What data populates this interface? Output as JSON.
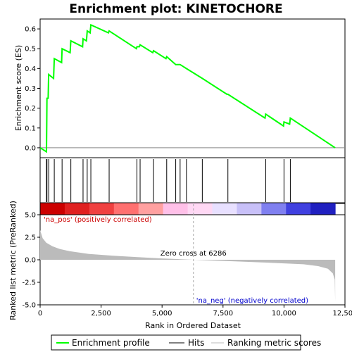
{
  "chart_data": {
    "type": "line",
    "title": "Enrichment plot: KINETOCHORE",
    "top_panel": {
      "ylabel": "Enrichment score (ES)",
      "ylim": [
        -0.05,
        0.65
      ],
      "yticks": [
        "0.0",
        "0.1",
        "0.2",
        "0.3",
        "0.4",
        "0.5",
        "0.6"
      ],
      "ytick_values": [
        0.0,
        0.1,
        0.2,
        0.3,
        0.4,
        0.5,
        0.6
      ],
      "line_color": "#00ff00",
      "profile": [
        [
          0,
          0.0
        ],
        [
          260,
          -0.02
        ],
        [
          270,
          0.12
        ],
        [
          280,
          0.25
        ],
        [
          330,
          0.25
        ],
        [
          350,
          0.37
        ],
        [
          550,
          0.35
        ],
        [
          580,
          0.45
        ],
        [
          880,
          0.43
        ],
        [
          900,
          0.5
        ],
        [
          1230,
          0.48
        ],
        [
          1260,
          0.54
        ],
        [
          1740,
          0.51
        ],
        [
          1760,
          0.55
        ],
        [
          1900,
          0.54
        ],
        [
          1930,
          0.59
        ],
        [
          2050,
          0.58
        ],
        [
          2080,
          0.62
        ],
        [
          2800,
          0.58
        ],
        [
          2830,
          0.59
        ],
        [
          3950,
          0.5
        ],
        [
          3970,
          0.51
        ],
        [
          4070,
          0.51
        ],
        [
          4100,
          0.52
        ],
        [
          4620,
          0.48
        ],
        [
          4650,
          0.49
        ],
        [
          5160,
          0.45
        ],
        [
          5190,
          0.46
        ],
        [
          5560,
          0.42
        ],
        [
          5740,
          0.42
        ],
        [
          6000,
          0.4
        ],
        [
          6650,
          0.35
        ],
        [
          7660,
          0.27
        ],
        [
          7700,
          0.27
        ],
        [
          9220,
          0.15
        ],
        [
          9250,
          0.17
        ],
        [
          9980,
          0.11
        ],
        [
          10000,
          0.13
        ],
        [
          10230,
          0.12
        ],
        [
          10260,
          0.15
        ],
        [
          12100,
          0.0
        ]
      ]
    },
    "hits": [
      260,
      280,
      350,
      580,
      900,
      1260,
      1760,
      1930,
      2080,
      2830,
      3970,
      4100,
      4650,
      5190,
      5560,
      5740,
      6000,
      6650,
      7700,
      9250,
      10000,
      10260
    ],
    "heat_bar_colors": [
      "#cc0000",
      "#e02020",
      "#f04040",
      "#ff7070",
      "#ffa0a0",
      "#ffc0e8",
      "#ffd8f4",
      "#e8e0ff",
      "#c8c0f8",
      "#8080f0",
      "#4040e0",
      "#2020c0"
    ],
    "bottom_panel": {
      "ylabel": "Ranked list metric (PreRanked)",
      "xlabel": "Rank in Ordered Dataset",
      "ylim": [
        -5.0,
        5.0
      ],
      "yticks": [
        "-5.0",
        "-2.5",
        "0.0",
        "2.5",
        "5.0"
      ],
      "ytick_values": [
        -5.0,
        -2.5,
        0.0,
        2.5,
        5.0
      ],
      "xlim": [
        0,
        12500
      ],
      "xticks": [
        "0",
        "2,500",
        "5,000",
        "7,500",
        "10,000",
        "12,500"
      ],
      "xtick_values": [
        0,
        2500,
        5000,
        7500,
        10000,
        12500
      ],
      "metric": [
        [
          0,
          3.3
        ],
        [
          100,
          2.4
        ],
        [
          250,
          1.9
        ],
        [
          500,
          1.5
        ],
        [
          800,
          1.2
        ],
        [
          1200,
          0.95
        ],
        [
          2000,
          0.65
        ],
        [
          3000,
          0.45
        ],
        [
          4000,
          0.3
        ],
        [
          5000,
          0.15
        ],
        [
          6286,
          0.0
        ],
        [
          7000,
          -0.08
        ],
        [
          8000,
          -0.18
        ],
        [
          9000,
          -0.28
        ],
        [
          10000,
          -0.4
        ],
        [
          10800,
          -0.5
        ],
        [
          11400,
          -0.7
        ],
        [
          11800,
          -1.0
        ],
        [
          12000,
          -1.5
        ],
        [
          12080,
          -2.2
        ],
        [
          12100,
          -4.6
        ]
      ],
      "zero_cross": 6286,
      "zero_cross_label": "Zero cross at 6286",
      "pos_label": "'na_pos' (positively correlated)",
      "neg_label": "'na_neg' (negatively correlated)"
    },
    "legend": [
      {
        "label": "Enrichment profile",
        "color": "#00ff00"
      },
      {
        "label": "Hits",
        "color": "#000000"
      },
      {
        "label": "Ranking metric scores",
        "color": "#bbbbbb"
      }
    ]
  }
}
